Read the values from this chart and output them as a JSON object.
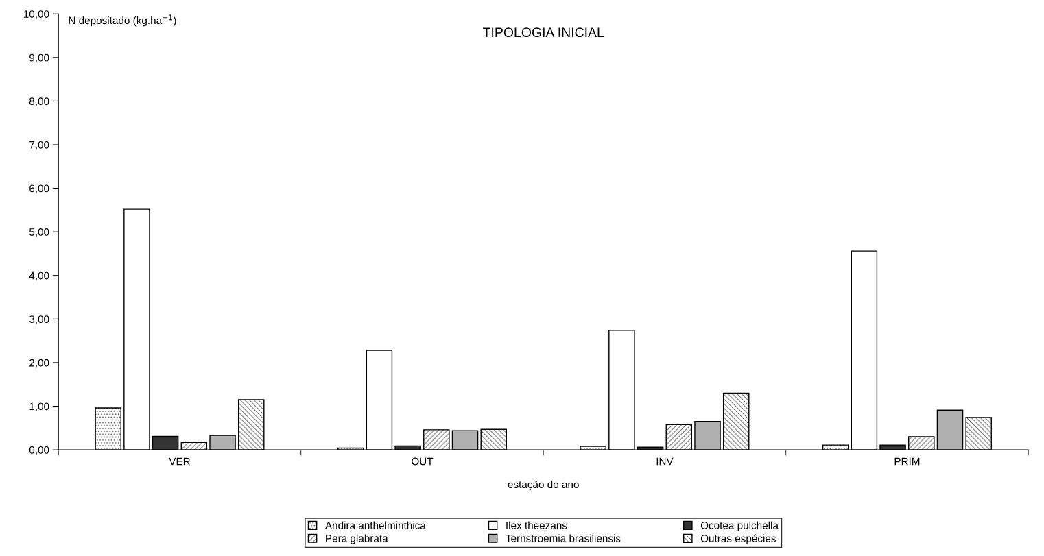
{
  "chart_data": {
    "type": "bar",
    "title": "TIPOLOGIA INICIAL",
    "xlabel": "estação do ano",
    "ylabel": "N depositado (kg.ha$^{−1}$)",
    "categories": [
      "VER",
      "OUT",
      "INV",
      "PRIM"
    ],
    "series": [
      {
        "name": "Andira anthelminthica",
        "color": "#000000",
        "values": [
          0.96,
          0.04,
          0.08,
          0.11
        ]
      },
      {
        "name": "Ilex theezans",
        "color": "#ffffff",
        "values": [
          5.52,
          2.28,
          2.74,
          4.56
        ]
      },
      {
        "name": "Ocotea pulchella",
        "color": "#333333",
        "values": [
          0.31,
          0.09,
          0.06,
          0.11
        ]
      },
      {
        "name": "Pera glabrata",
        "color": "#000000",
        "values": [
          0.17,
          0.46,
          0.58,
          0.3
        ]
      },
      {
        "name": "Ternstroemia brasiliensis",
        "color": "#b0b0b0",
        "values": [
          0.33,
          0.44,
          0.65,
          0.91
        ]
      },
      {
        "name": "Outras espécies",
        "color": "#000000",
        "values": [
          1.15,
          0.47,
          1.3,
          0.74
        ]
      }
    ],
    "ylim": [
      0,
      10
    ],
    "yticks": [
      {
        "value": 0,
        "label": "0,00"
      },
      {
        "value": 1,
        "label": "1,00"
      },
      {
        "value": 2,
        "label": "2,00"
      },
      {
        "value": 3,
        "label": "3,00"
      },
      {
        "value": 4,
        "label": "4,00"
      },
      {
        "value": 5,
        "label": "5,00"
      },
      {
        "value": 6,
        "label": "6,00"
      },
      {
        "value": 7,
        "label": "7,00"
      },
      {
        "value": 8,
        "label": "8,00"
      },
      {
        "value": 9,
        "label": "9,00"
      },
      {
        "value": 10,
        "label": "10,00"
      }
    ],
    "grid": false,
    "legend": "bottom"
  }
}
